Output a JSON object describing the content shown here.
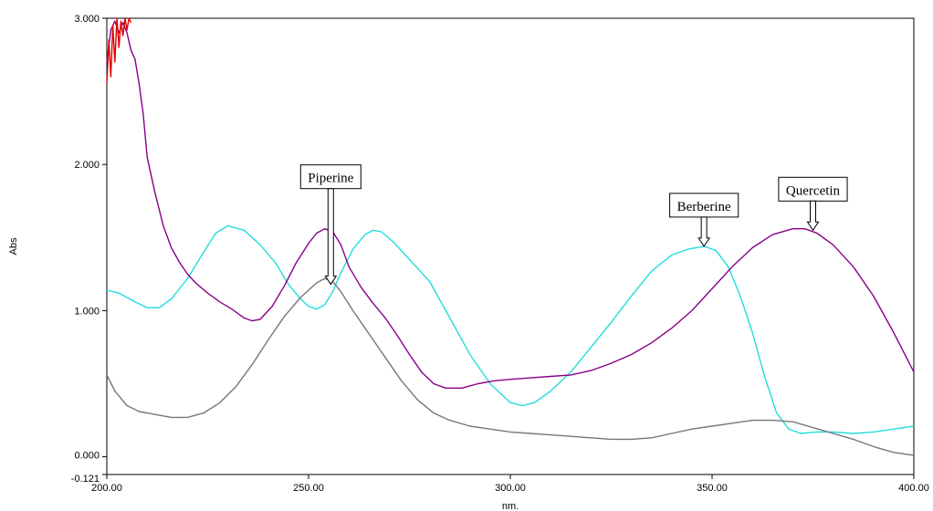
{
  "chart_data": {
    "type": "line",
    "title": "",
    "xlabel": "nm.",
    "ylabel": "Abs",
    "xlim": [
      200,
      400
    ],
    "ylim": [
      -0.121,
      3.0
    ],
    "grid": false,
    "x_ticks": [
      "200.00",
      "250.00",
      "300.00",
      "350.00",
      "400.00"
    ],
    "y_ticks": [
      "-0.121",
      "0.000",
      "1.000",
      "2.000",
      "3.000"
    ],
    "series": [
      {
        "key": "cyan",
        "color": "#22dddd",
        "points": [
          [
            200,
            1.14
          ],
          [
            203,
            1.12
          ],
          [
            207,
            1.06
          ],
          [
            210,
            1.02
          ],
          [
            213,
            1.02
          ],
          [
            216,
            1.08
          ],
          [
            220,
            1.22
          ],
          [
            224,
            1.4
          ],
          [
            227,
            1.53
          ],
          [
            230,
            1.58
          ],
          [
            234,
            1.55
          ],
          [
            238,
            1.45
          ],
          [
            242,
            1.32
          ],
          [
            245,
            1.18
          ],
          [
            248,
            1.08
          ],
          [
            250,
            1.03
          ],
          [
            252,
            1.01
          ],
          [
            254,
            1.04
          ],
          [
            256,
            1.13
          ],
          [
            258,
            1.26
          ],
          [
            261,
            1.42
          ],
          [
            264,
            1.52
          ],
          [
            266,
            1.55
          ],
          [
            268,
            1.54
          ],
          [
            271,
            1.47
          ],
          [
            275,
            1.35
          ],
          [
            280,
            1.2
          ],
          [
            285,
            0.95
          ],
          [
            290,
            0.7
          ],
          [
            295,
            0.5
          ],
          [
            300,
            0.37
          ],
          [
            303,
            0.35
          ],
          [
            306,
            0.37
          ],
          [
            310,
            0.45
          ],
          [
            315,
            0.58
          ],
          [
            320,
            0.75
          ],
          [
            325,
            0.92
          ],
          [
            330,
            1.1
          ],
          [
            335,
            1.27
          ],
          [
            340,
            1.38
          ],
          [
            344,
            1.42
          ],
          [
            348,
            1.44
          ],
          [
            351,
            1.41
          ],
          [
            354,
            1.3
          ],
          [
            357,
            1.1
          ],
          [
            360,
            0.85
          ],
          [
            363,
            0.55
          ],
          [
            366,
            0.3
          ],
          [
            369,
            0.19
          ],
          [
            372,
            0.16
          ],
          [
            376,
            0.17
          ],
          [
            380,
            0.17
          ],
          [
            385,
            0.16
          ],
          [
            390,
            0.17
          ],
          [
            395,
            0.19
          ],
          [
            400,
            0.21
          ]
        ]
      },
      {
        "key": "purple",
        "color": "#880088",
        "points": [
          [
            200,
            2.7
          ],
          [
            201,
            2.92
          ],
          [
            202,
            2.98
          ],
          [
            203,
            2.9
          ],
          [
            204,
            2.97
          ],
          [
            205,
            2.9
          ],
          [
            206,
            2.78
          ],
          [
            207,
            2.72
          ],
          [
            208,
            2.55
          ],
          [
            209,
            2.35
          ],
          [
            210,
            2.05
          ],
          [
            212,
            1.8
          ],
          [
            214,
            1.58
          ],
          [
            216,
            1.43
          ],
          [
            218,
            1.33
          ],
          [
            220,
            1.25
          ],
          [
            222,
            1.19
          ],
          [
            225,
            1.12
          ],
          [
            228,
            1.06
          ],
          [
            231,
            1.01
          ],
          [
            234,
            0.95
          ],
          [
            236,
            0.93
          ],
          [
            238,
            0.94
          ],
          [
            241,
            1.03
          ],
          [
            244,
            1.17
          ],
          [
            247,
            1.33
          ],
          [
            250,
            1.46
          ],
          [
            252,
            1.53
          ],
          [
            254,
            1.56
          ],
          [
            256,
            1.54
          ],
          [
            258,
            1.45
          ],
          [
            260,
            1.3
          ],
          [
            263,
            1.16
          ],
          [
            266,
            1.05
          ],
          [
            269,
            0.95
          ],
          [
            272,
            0.83
          ],
          [
            275,
            0.7
          ],
          [
            278,
            0.58
          ],
          [
            281,
            0.5
          ],
          [
            284,
            0.47
          ],
          [
            288,
            0.47
          ],
          [
            292,
            0.5
          ],
          [
            296,
            0.52
          ],
          [
            300,
            0.53
          ],
          [
            305,
            0.54
          ],
          [
            310,
            0.55
          ],
          [
            315,
            0.56
          ],
          [
            320,
            0.59
          ],
          [
            325,
            0.64
          ],
          [
            330,
            0.7
          ],
          [
            335,
            0.78
          ],
          [
            340,
            0.88
          ],
          [
            345,
            1.0
          ],
          [
            350,
            1.15
          ],
          [
            355,
            1.3
          ],
          [
            360,
            1.43
          ],
          [
            365,
            1.52
          ],
          [
            370,
            1.56
          ],
          [
            373,
            1.56
          ],
          [
            376,
            1.53
          ],
          [
            380,
            1.45
          ],
          [
            385,
            1.3
          ],
          [
            390,
            1.1
          ],
          [
            395,
            0.85
          ],
          [
            400,
            0.58
          ]
        ]
      },
      {
        "key": "red",
        "color": "#dd0000",
        "points": [
          [
            200,
            2.55
          ],
          [
            200.5,
            2.85
          ],
          [
            201,
            2.6
          ],
          [
            201.5,
            2.95
          ],
          [
            202,
            2.7
          ],
          [
            202.5,
            3.0
          ],
          [
            203,
            2.8
          ],
          [
            203.5,
            2.98
          ],
          [
            204,
            2.88
          ],
          [
            204.5,
            3.0
          ],
          [
            205,
            2.92
          ],
          [
            205.5,
            3.0
          ],
          [
            206,
            2.97
          ]
        ]
      },
      {
        "key": "gray",
        "color": "#777777",
        "points": [
          [
            200,
            0.56
          ],
          [
            202,
            0.45
          ],
          [
            205,
            0.35
          ],
          [
            208,
            0.31
          ],
          [
            212,
            0.29
          ],
          [
            216,
            0.27
          ],
          [
            220,
            0.27
          ],
          [
            224,
            0.3
          ],
          [
            228,
            0.37
          ],
          [
            232,
            0.48
          ],
          [
            236,
            0.63
          ],
          [
            240,
            0.8
          ],
          [
            244,
            0.96
          ],
          [
            248,
            1.09
          ],
          [
            252,
            1.19
          ],
          [
            254,
            1.22
          ],
          [
            256,
            1.2
          ],
          [
            258,
            1.13
          ],
          [
            261,
            1.0
          ],
          [
            265,
            0.84
          ],
          [
            269,
            0.68
          ],
          [
            273,
            0.52
          ],
          [
            277,
            0.39
          ],
          [
            281,
            0.3
          ],
          [
            285,
            0.25
          ],
          [
            290,
            0.21
          ],
          [
            295,
            0.19
          ],
          [
            300,
            0.17
          ],
          [
            305,
            0.16
          ],
          [
            310,
            0.15
          ],
          [
            315,
            0.14
          ],
          [
            320,
            0.13
          ],
          [
            325,
            0.12
          ],
          [
            330,
            0.12
          ],
          [
            335,
            0.13
          ],
          [
            340,
            0.16
          ],
          [
            345,
            0.19
          ],
          [
            350,
            0.21
          ],
          [
            355,
            0.23
          ],
          [
            360,
            0.25
          ],
          [
            365,
            0.25
          ],
          [
            370,
            0.24
          ],
          [
            375,
            0.2
          ],
          [
            380,
            0.16
          ],
          [
            385,
            0.12
          ],
          [
            390,
            0.07
          ],
          [
            395,
            0.03
          ],
          [
            400,
            0.01
          ]
        ]
      }
    ],
    "annotations": [
      {
        "label": "Piperine",
        "x": 255.5,
        "y": 1.56
      },
      {
        "label": "Berberine",
        "x": 348,
        "y": 1.44
      },
      {
        "label": "Quercetin",
        "x": 375,
        "y": 1.55
      }
    ]
  }
}
